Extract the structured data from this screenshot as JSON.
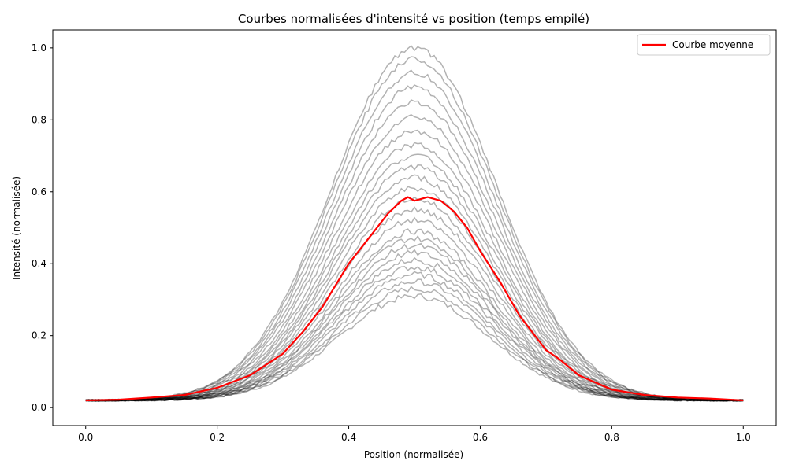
{
  "chart_data": {
    "type": "line",
    "title": "Courbes normalisées d'intensité vs position (temps empilé)",
    "xlabel": "Position (normalisée)",
    "ylabel": "Intensité (normalisée)",
    "xlim": [
      -0.05,
      1.05
    ],
    "ylim": [
      -0.05,
      1.05
    ],
    "xticks": [
      0.0,
      0.2,
      0.4,
      0.6,
      0.8,
      1.0
    ],
    "yticks": [
      0.0,
      0.2,
      0.4,
      0.6,
      0.8,
      1.0
    ],
    "xtick_labels": [
      "0.0",
      "0.2",
      "0.4",
      "0.6",
      "0.8",
      "1.0"
    ],
    "ytick_labels": [
      "0.0",
      "0.2",
      "0.4",
      "0.6",
      "0.8",
      "1.0"
    ],
    "grid": false,
    "legend": {
      "placement": "top-right",
      "entries": [
        {
          "label": "Courbe moyenne",
          "color": "#ff0000"
        }
      ]
    },
    "stacked_curves": {
      "color": "#000000",
      "opacity": 0.3,
      "baseline": 0.02,
      "center": 0.5,
      "peaks": [
        0.31,
        0.33,
        0.35,
        0.37,
        0.39,
        0.41,
        0.43,
        0.45,
        0.47,
        0.49,
        0.52,
        0.55,
        0.58,
        0.61,
        0.64,
        0.67,
        0.7,
        0.73,
        0.77,
        0.81,
        0.85,
        0.89,
        0.93,
        0.97,
        1.0
      ]
    },
    "series": [
      {
        "name": "Courbe moyenne",
        "color": "#ff0000",
        "x": [
          0.0,
          0.05,
          0.1,
          0.15,
          0.2,
          0.25,
          0.3,
          0.33,
          0.36,
          0.4,
          0.43,
          0.46,
          0.48,
          0.49,
          0.5,
          0.52,
          0.54,
          0.56,
          0.58,
          0.6,
          0.63,
          0.66,
          0.7,
          0.72,
          0.75,
          0.8,
          0.85,
          0.9,
          0.95,
          1.0
        ],
        "values": [
          0.02,
          0.022,
          0.028,
          0.035,
          0.055,
          0.09,
          0.15,
          0.21,
          0.28,
          0.4,
          0.47,
          0.54,
          0.575,
          0.585,
          0.575,
          0.585,
          0.575,
          0.545,
          0.5,
          0.435,
          0.35,
          0.255,
          0.16,
          0.135,
          0.09,
          0.05,
          0.035,
          0.028,
          0.025,
          0.02
        ]
      }
    ]
  }
}
